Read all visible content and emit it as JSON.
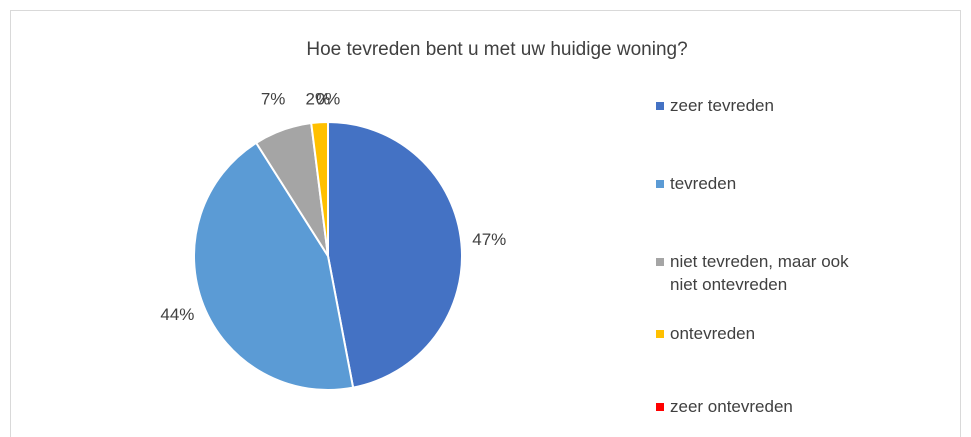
{
  "chart_data": {
    "type": "pie",
    "title": "Hoe tevreden bent u met uw huidige woning?",
    "categories": [
      "zeer tevreden",
      "tevreden",
      "niet tevreden, maar ook niet ontevreden",
      "ontevreden",
      "zeer ontevreden"
    ],
    "values": [
      47,
      44,
      7,
      2,
      0
    ],
    "value_labels": [
      "47%",
      "44%",
      "7%",
      "2%",
      "0%"
    ],
    "colors": [
      "#4472c4",
      "#5b9bd5",
      "#a5a5a5",
      "#ffc000",
      "#ff0000"
    ],
    "legend": "right"
  }
}
